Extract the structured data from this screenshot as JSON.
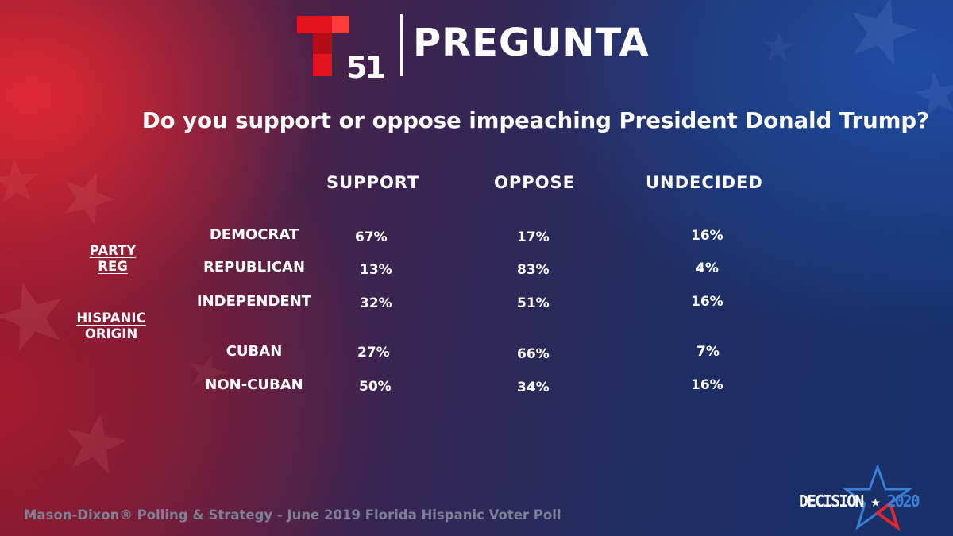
{
  "brand": {
    "logo_number": "51",
    "title": "PREGUNTA"
  },
  "question": "Do you support or oppose impeaching President Donald Trump?",
  "columns": [
    "SUPPORT",
    "OPPOSE",
    "UNDECIDED"
  ],
  "groups": [
    {
      "line1": "PARTY",
      "line2": "REG"
    },
    {
      "line1": "HISPANIC",
      "line2": "ORIGIN"
    }
  ],
  "rows": [
    {
      "label": "DEMOCRAT",
      "support": "67%",
      "oppose": "17%",
      "undecided": "16%"
    },
    {
      "label": "REPUBLICAN",
      "support": "13%",
      "oppose": "83%",
      "undecided": "4%"
    },
    {
      "label": "INDEPENDENT",
      "support": "32%",
      "oppose": "51%",
      "undecided": "16%"
    },
    {
      "label": "CUBAN",
      "support": "27%",
      "oppose": "66%",
      "undecided": "7%"
    },
    {
      "label": "NON-CUBAN",
      "support": "50%",
      "oppose": "34%",
      "undecided": "16%"
    }
  ],
  "footer": "Mason-Dixon® Polling & Strategy - June 2019 Florida Hispanic Voter Poll",
  "decision": {
    "word": "DECISION",
    "year": "2020"
  },
  "colors": {
    "logo_red": "#e3141d",
    "footer_gray": "#7f7f97",
    "decision_blue": "#3a7fd6",
    "decision_red": "#e0262d"
  }
}
